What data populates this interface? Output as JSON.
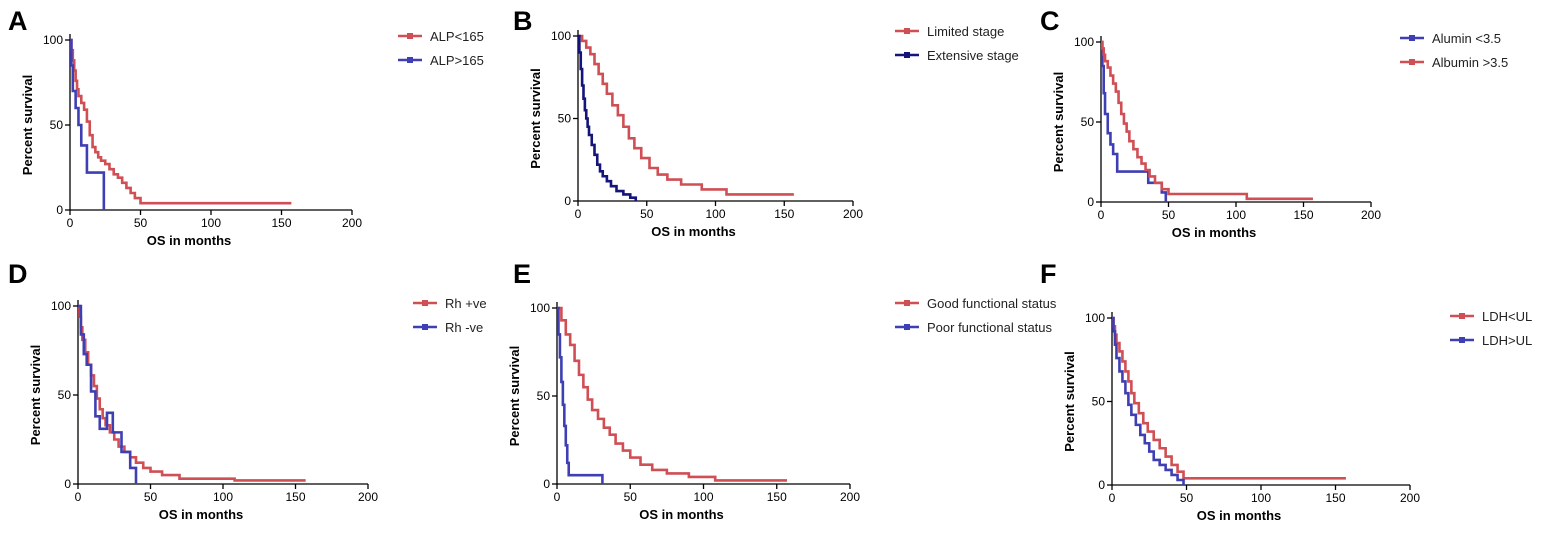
{
  "colors": {
    "red": "#cf4f55",
    "blue": "#3f3fb4"
  },
  "chart_data": [
    {
      "letter": "A",
      "type": "line",
      "step": true,
      "xlabel": "OS in months",
      "ylabel": "Percent survival",
      "xlim": [
        0,
        200
      ],
      "ylim": [
        0,
        100
      ],
      "xticks": [
        0,
        50,
        100,
        150,
        200
      ],
      "yticks": [
        0,
        50,
        100
      ],
      "legend_position": "top-right",
      "series": [
        {
          "name": "ALP<165",
          "color": "#cf4f55",
          "x": [
            0,
            1,
            2,
            3,
            4,
            5,
            6,
            8,
            10,
            12,
            14,
            16,
            18,
            20,
            22,
            25,
            28,
            31,
            34,
            37,
            40,
            43,
            46,
            50,
            108,
            157
          ],
          "y": [
            100,
            94,
            88,
            82,
            76,
            71,
            67,
            63,
            59,
            52,
            44,
            37,
            34,
            31,
            29,
            27,
            24,
            21,
            19,
            16,
            13,
            10,
            7,
            4,
            4,
            4
          ]
        },
        {
          "name": "ALP>165",
          "color": "#3f3fb4",
          "x": [
            0,
            1,
            2,
            4,
            6,
            8,
            12,
            22,
            24
          ],
          "y": [
            100,
            85,
            70,
            60,
            50,
            38,
            22,
            22,
            0
          ]
        }
      ]
    },
    {
      "letter": "B",
      "type": "line",
      "step": true,
      "xlabel": "OS in months",
      "ylabel": "Percent survival",
      "xlim": [
        0,
        200
      ],
      "ylim": [
        0,
        100
      ],
      "xticks": [
        0,
        50,
        100,
        150,
        200
      ],
      "yticks": [
        0,
        50,
        100
      ],
      "legend_position": "top-right",
      "series": [
        {
          "name": "Limited stage",
          "color": "#cf4f55",
          "x": [
            0,
            3,
            6,
            9,
            12,
            15,
            18,
            21,
            25,
            29,
            33,
            37,
            41,
            46,
            52,
            58,
            65,
            75,
            90,
            108,
            130,
            157
          ],
          "y": [
            100,
            97,
            93,
            89,
            83,
            77,
            71,
            65,
            58,
            52,
            45,
            38,
            32,
            26,
            20,
            16,
            13,
            10,
            7,
            4,
            4,
            4
          ]
        },
        {
          "name": "Extensive stage",
          "color": "#14147a",
          "x": [
            0,
            1,
            2,
            3,
            4,
            5,
            6,
            7,
            8,
            10,
            12,
            14,
            16,
            18,
            21,
            24,
            28,
            33,
            38,
            42
          ],
          "y": [
            100,
            90,
            80,
            70,
            62,
            55,
            50,
            45,
            40,
            34,
            28,
            22,
            18,
            15,
            12,
            9,
            6,
            4,
            2,
            0
          ]
        }
      ]
    },
    {
      "letter": "C",
      "type": "line",
      "step": true,
      "xlabel": "OS in months",
      "ylabel": "Percent survival",
      "xlim": [
        0,
        200
      ],
      "ylim": [
        0,
        100
      ],
      "xticks": [
        0,
        50,
        100,
        150,
        200
      ],
      "yticks": [
        0,
        50,
        100
      ],
      "legend_position": "top-right",
      "series": [
        {
          "name": "Alumin <3.5",
          "color": "#3f3fb4",
          "x": [
            0,
            1,
            2,
            3,
            5,
            7,
            9,
            12,
            25,
            35,
            45,
            48
          ],
          "y": [
            100,
            85,
            68,
            55,
            43,
            36,
            30,
            19,
            19,
            12,
            6,
            0
          ]
        },
        {
          "name": "Albumin >3.5",
          "color": "#cf4f55",
          "x": [
            0,
            1,
            2,
            3,
            5,
            7,
            9,
            11,
            13,
            15,
            17,
            19,
            21,
            24,
            27,
            30,
            33,
            36,
            40,
            45,
            50,
            108,
            157
          ],
          "y": [
            100,
            96,
            92,
            88,
            84,
            79,
            74,
            69,
            62,
            55,
            49,
            44,
            38,
            33,
            28,
            24,
            20,
            16,
            12,
            8,
            5,
            2,
            2
          ]
        }
      ]
    },
    {
      "letter": "D",
      "type": "line",
      "step": true,
      "xlabel": "OS in months",
      "ylabel": "Percent survival",
      "xlim": [
        0,
        200
      ],
      "ylim": [
        0,
        100
      ],
      "xticks": [
        0,
        50,
        100,
        150,
        200
      ],
      "yticks": [
        0,
        50,
        100
      ],
      "legend_position": "top-right",
      "series": [
        {
          "name": "Rh +ve",
          "color": "#cf4f55",
          "x": [
            0,
            1,
            2,
            3,
            5,
            7,
            9,
            11,
            13,
            15,
            17,
            19,
            22,
            25,
            28,
            32,
            36,
            40,
            45,
            50,
            58,
            70,
            108,
            157
          ],
          "y": [
            100,
            94,
            88,
            81,
            74,
            67,
            61,
            55,
            48,
            42,
            37,
            33,
            29,
            25,
            21,
            18,
            15,
            12,
            9,
            7,
            5,
            3,
            2,
            2
          ]
        },
        {
          "name": "Rh -ve",
          "color": "#3f3fb4",
          "x": [
            0,
            2,
            4,
            6,
            9,
            12,
            15,
            20,
            24,
            30,
            36,
            40
          ],
          "y": [
            100,
            84,
            73,
            67,
            52,
            38,
            31,
            40,
            29,
            18,
            9,
            0
          ]
        }
      ]
    },
    {
      "letter": "E",
      "type": "line",
      "step": true,
      "xlabel": "OS in months",
      "ylabel": "Percent survival",
      "xlim": [
        0,
        200
      ],
      "ylim": [
        0,
        100
      ],
      "xticks": [
        0,
        50,
        100,
        150,
        200
      ],
      "yticks": [
        0,
        50,
        100
      ],
      "legend_position": "top-right",
      "series": [
        {
          "name": "Good functional status",
          "color": "#cf4f55",
          "x": [
            0,
            3,
            6,
            9,
            12,
            15,
            18,
            21,
            24,
            28,
            32,
            36,
            40,
            45,
            50,
            57,
            65,
            75,
            90,
            108,
            157
          ],
          "y": [
            100,
            93,
            85,
            79,
            70,
            62,
            55,
            48,
            42,
            37,
            32,
            28,
            23,
            19,
            15,
            11,
            8,
            6,
            4,
            2,
            2
          ]
        },
        {
          "name": "Poor functional status",
          "color": "#3f3fb4",
          "x": [
            0,
            1,
            2,
            3,
            4,
            5,
            6,
            7,
            8,
            31
          ],
          "y": [
            100,
            85,
            72,
            58,
            45,
            33,
            22,
            12,
            5,
            0
          ]
        }
      ]
    },
    {
      "letter": "F",
      "type": "line",
      "step": true,
      "xlabel": "OS in months",
      "ylabel": "Percent survival",
      "xlim": [
        0,
        200
      ],
      "ylim": [
        0,
        100
      ],
      "xticks": [
        0,
        50,
        100,
        150,
        200
      ],
      "yticks": [
        0,
        50,
        100
      ],
      "legend_position": "top-right",
      "series": [
        {
          "name": "LDH<UL",
          "color": "#cf4f55",
          "x": [
            0,
            1,
            2,
            3,
            5,
            7,
            9,
            11,
            13,
            15,
            18,
            21,
            24,
            28,
            32,
            36,
            40,
            44,
            48,
            157
          ],
          "y": [
            100,
            95,
            90,
            85,
            80,
            74,
            68,
            62,
            55,
            49,
            43,
            37,
            32,
            27,
            22,
            17,
            12,
            8,
            4,
            4
          ]
        },
        {
          "name": "LDH>UL",
          "color": "#3f3fb4",
          "x": [
            0,
            1,
            2,
            3,
            5,
            7,
            9,
            11,
            13,
            16,
            19,
            22,
            25,
            28,
            32,
            36,
            40,
            44,
            48
          ],
          "y": [
            100,
            92,
            84,
            76,
            68,
            62,
            55,
            48,
            42,
            36,
            30,
            25,
            20,
            15,
            12,
            9,
            6,
            3,
            0
          ]
        }
      ]
    }
  ]
}
